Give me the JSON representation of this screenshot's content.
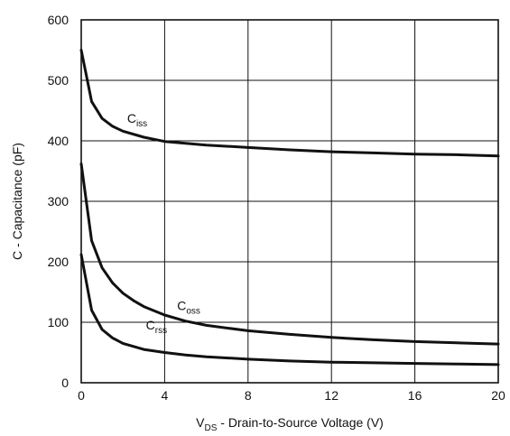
{
  "chart_data": {
    "type": "line",
    "xlabel_main": "V",
    "xlabel_sub": "DS",
    "xlabel_rest": " - Drain-to-Source Voltage (V)",
    "ylabel": "C - Capacitance (pF)",
    "xlim": [
      0,
      20
    ],
    "ylim": [
      0,
      600
    ],
    "xticks": [
      0,
      4,
      8,
      12,
      16,
      20
    ],
    "yticks": [
      0,
      100,
      200,
      300,
      400,
      500,
      600
    ],
    "grid": true,
    "series": [
      {
        "label_main": "C",
        "label_sub": "iss",
        "x": [
          0,
          0.5,
          1,
          1.5,
          2,
          3,
          4,
          5,
          6,
          8,
          10,
          12,
          14,
          16,
          18,
          20
        ],
        "y": [
          550,
          465,
          437,
          424,
          416,
          406,
          399,
          396,
          393,
          389,
          385,
          382,
          380,
          378,
          377,
          375
        ]
      },
      {
        "label_main": "C",
        "label_sub": "oss",
        "x": [
          0,
          0.5,
          1,
          1.5,
          2,
          2.5,
          3,
          4,
          5,
          6,
          8,
          10,
          12,
          14,
          16,
          18,
          20
        ],
        "y": [
          362,
          235,
          190,
          165,
          148,
          136,
          126,
          112,
          102,
          95,
          86,
          80,
          75,
          71,
          68,
          66,
          64
        ]
      },
      {
        "label_main": "C",
        "label_sub": "rss",
        "x": [
          0,
          0.5,
          1,
          1.5,
          2,
          3,
          4,
          5,
          6,
          8,
          10,
          12,
          14,
          16,
          18,
          20
        ],
        "y": [
          212,
          120,
          88,
          74,
          65,
          55,
          50,
          46,
          43,
          39,
          36,
          34,
          33,
          32,
          31,
          30
        ]
      }
    ]
  }
}
